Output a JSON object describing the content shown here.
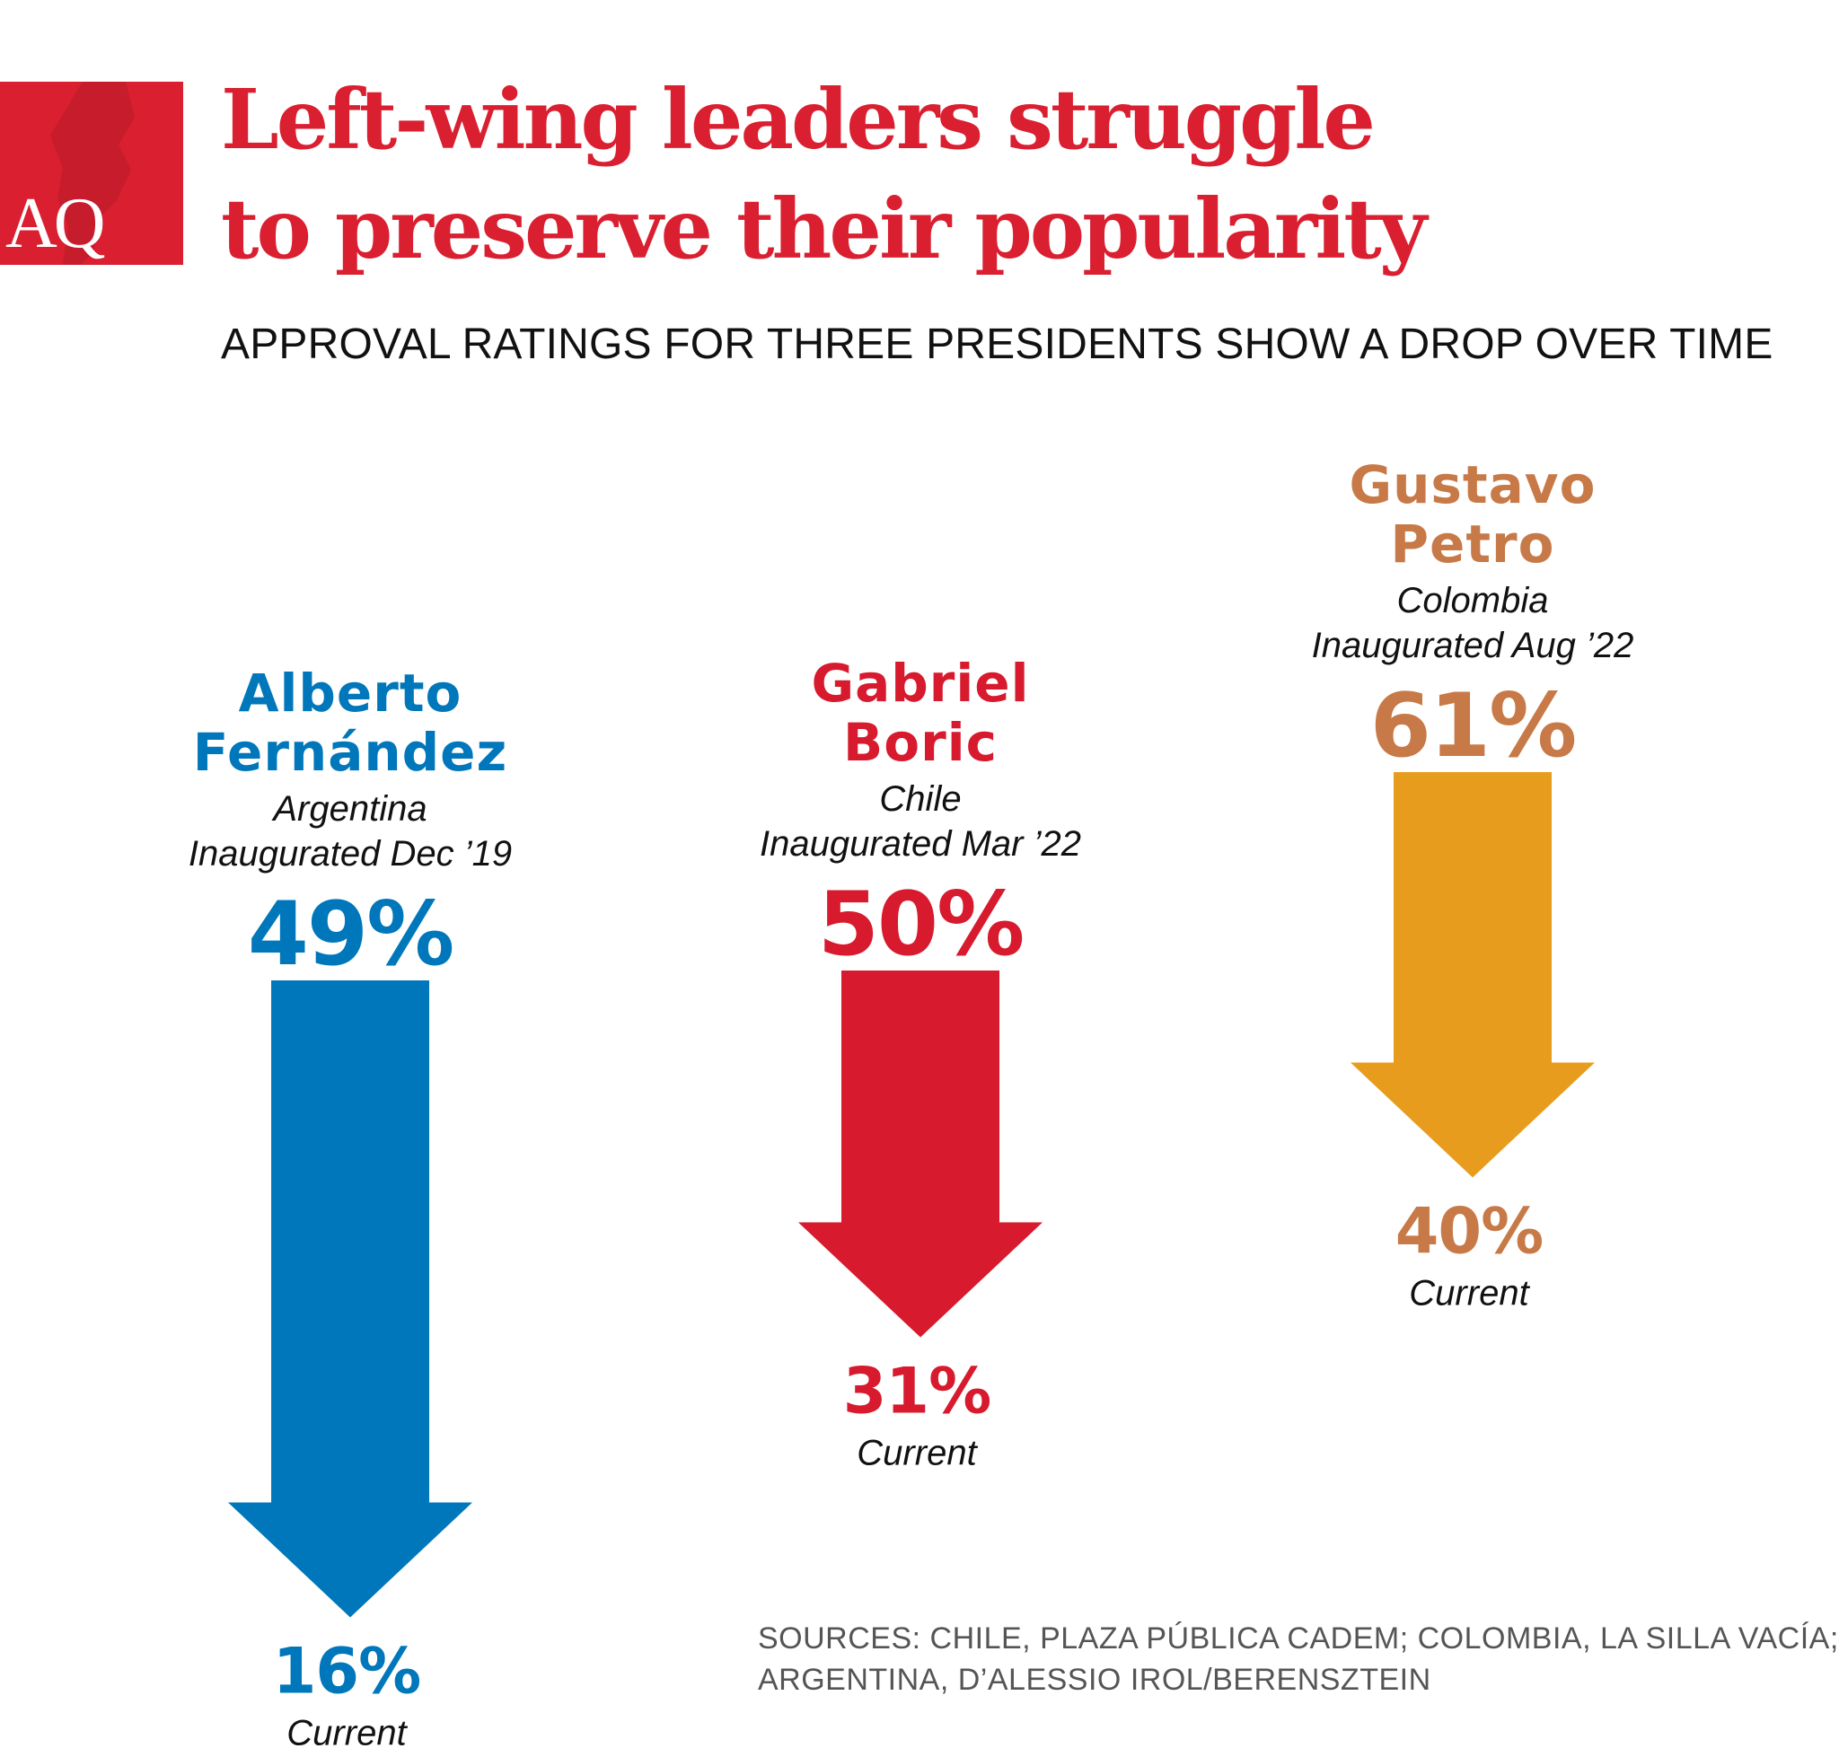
{
  "title_lines": [
    "Left-wing leaders struggle",
    "to preserve their popularity"
  ],
  "subtitle": "APPROVAL RATINGS FOR THREE PRESIDENTS SHOW A DROP OVER TIME",
  "logo": "AQ",
  "sources_lines": [
    "SOURCES: CHILE, PLAZA PÚBLICA CADEM; COLOMBIA, LA SILLA VACÍA;",
    "ARGENTINA, D’ALESSIO IROL/BERENSZTEIN"
  ],
  "colors": {
    "brand_red": "#d91f30",
    "fernandez": "#0077ba",
    "boric_arrow": "#d71a2d",
    "boric_text": "#d71a2d",
    "petro_arrow": "#e89c1e",
    "petro_text": "#c77a47"
  },
  "chart_data": {
    "type": "arrow",
    "unit": "%",
    "start_label": "Inaugurated",
    "end_label": "Current",
    "series": [
      {
        "name_lines": [
          "Alberto",
          "Fernández"
        ],
        "country": "Argentina",
        "inaugurated": "Inaugurated Dec ’19",
        "start": 49,
        "end": 16,
        "start_text": "49%",
        "end_text": "16%",
        "end_caption": "Current"
      },
      {
        "name_lines": [
          "Gabriel",
          "Boric"
        ],
        "country": "Chile",
        "inaugurated": "Inaugurated Mar ’22",
        "start": 50,
        "end": 31,
        "start_text": "50%",
        "end_text": "31%",
        "end_caption": "Current"
      },
      {
        "name_lines": [
          "Gustavo",
          "Petro"
        ],
        "country": "Colombia",
        "inaugurated": "Inaugurated Aug ’22",
        "start": 61,
        "end": 40,
        "start_text": "61%",
        "end_text": "40%",
        "end_caption": "Current"
      }
    ]
  }
}
